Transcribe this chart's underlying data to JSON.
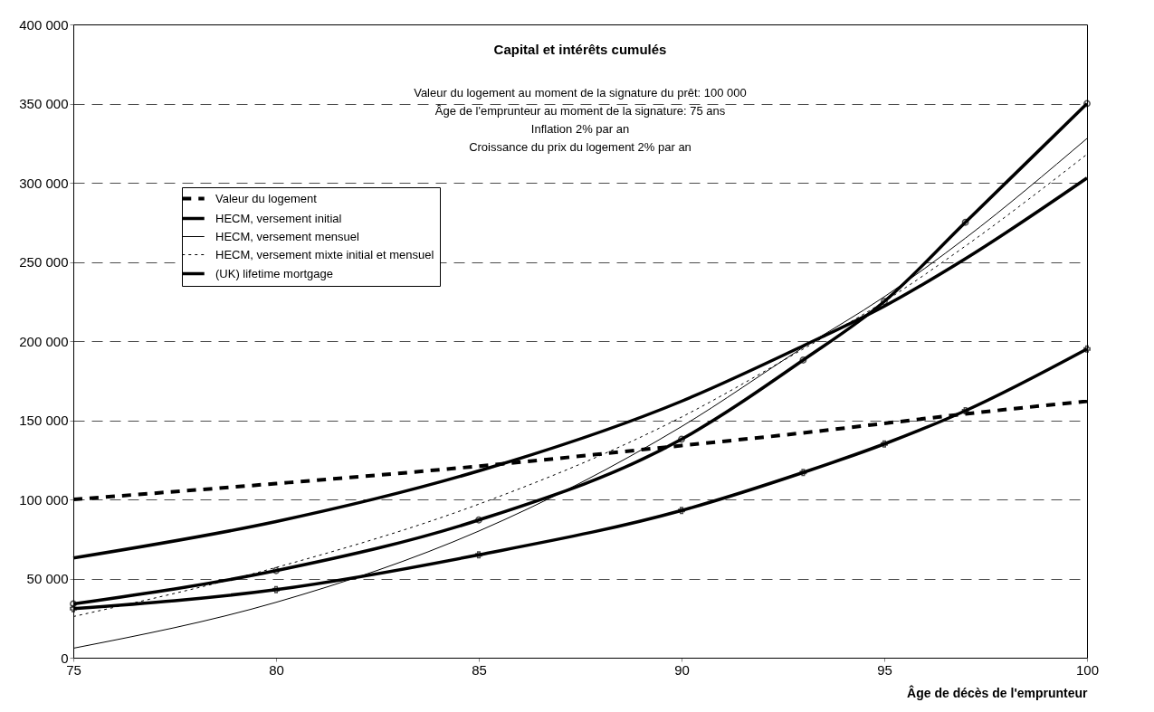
{
  "chart_data": {
    "type": "line",
    "title": "Capital et intérêts cumulés",
    "subtitle": "Valeur du logement au moment de la signature du prêt: 100 000\nÂge de l'emprunteur au moment de la signature: 75 ans\nInflation 2% par an\nCroissance du prix du logement 2% par an",
    "xlabel": "Âge de décès de l'emprunteur",
    "x": [
      75,
      80,
      85,
      90,
      93,
      95,
      97,
      100
    ],
    "series": [
      {
        "name": "Valeur du logement",
        "color": "#000000",
        "line_style": "dashed",
        "values": [
          100000,
          110000,
          121000,
          134000,
          142000,
          148000,
          154000,
          162000
        ]
      },
      {
        "name": "HECM, versement initial",
        "color": "#000000",
        "values": [
          63000,
          86000,
          118000,
          162000,
          197000,
          222000,
          252000,
          303000
        ]
      },
      {
        "name": "HECM, versement mensuel",
        "color": "#000000",
        "values": [
          6000,
          35000,
          80000,
          146000,
          196000,
          228000,
          265000,
          328000
        ]
      },
      {
        "name": "HECM, versement mixte initial et mensuel",
        "color": "#000000",
        "line_style": "dotted",
        "values": [
          26000,
          57000,
          97000,
          152000,
          195000,
          225000,
          260000,
          318000
        ]
      },
      {
        "color": "#000000",
        "marker": "circle",
        "values": [
          34000,
          55000,
          87000,
          138000,
          188000,
          225000,
          275000,
          350000
        ]
      },
      {
        "name": "(UK) lifetime mortgage",
        "color": "#000000",
        "marker": "cross",
        "values": [
          31000,
          43000,
          65000,
          93000,
          117000,
          135000,
          156000,
          195000
        ]
      }
    ],
    "xlim": [
      75,
      100
    ],
    "xticks": [
      75,
      80,
      85,
      90,
      95,
      100
    ],
    "ylim": [
      0,
      400000
    ],
    "yticks": [
      0,
      {
        "value": 50000,
        "label": "50 000"
      },
      {
        "value": 100000,
        "label": "100 000"
      },
      {
        "value": 150000,
        "label": "150 000"
      },
      {
        "value": 200000,
        "label": "200 000"
      },
      {
        "value": 250000,
        "label": "250 000"
      },
      {
        "value": 300000,
        "label": "300 000"
      },
      {
        "value": 350000,
        "label": "350 000"
      },
      {
        "value": 400000,
        "label": "400 000"
      }
    ],
    "grid": "y",
    "legend": "top left"
  }
}
